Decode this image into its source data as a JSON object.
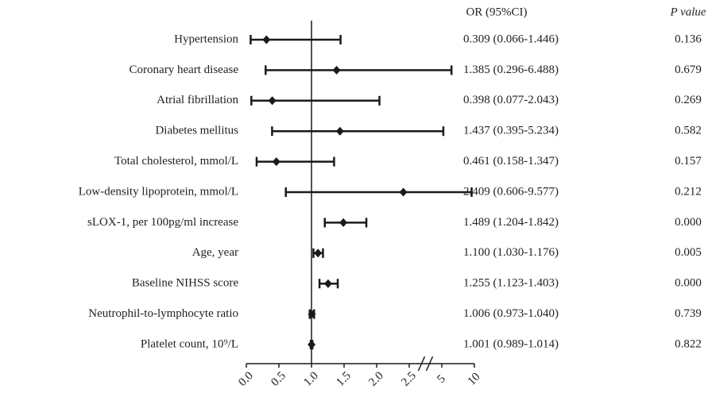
{
  "chart_data": {
    "type": "forest",
    "columns": [
      "OR (95%CI)",
      "P value"
    ],
    "categories": [
      "Hypertension",
      "Coronary heart disease",
      "Atrial fibrillation",
      "Diabetes mellitus",
      "Total cholesterol, mmol/L",
      "Low-density lipoprotein, mmol/L",
      "sLOX-1, per 100pg/ml increase",
      "Age, year",
      "Baseline NIHSS score",
      "Neutrophil-to-lymphocyte ratio",
      "Platelet count, 10⁹/L"
    ],
    "values": [
      0.309,
      1.385,
      0.398,
      1.437,
      0.461,
      2.409,
      1.489,
      1.1,
      1.255,
      1.006,
      1.001
    ],
    "lower": [
      0.066,
      0.296,
      0.077,
      0.395,
      0.158,
      0.606,
      1.204,
      1.03,
      1.123,
      0.973,
      0.989
    ],
    "upper": [
      1.446,
      6.488,
      2.043,
      5.234,
      1.347,
      9.577,
      1.842,
      1.176,
      1.403,
      1.04,
      1.014
    ],
    "value_labels": [
      "0.309 (0.066-1.446)",
      "1.385 (0.296-6.488)",
      "0.398 (0.077-2.043)",
      "1.437 (0.395-5.234)",
      "0.461 (0.158-1.347)",
      "2.409 (0.606-9.577)",
      "1.489 (1.204-1.842)",
      "1.100 (1.030-1.176)",
      "1.255 (1.123-1.403)",
      "1.006 (0.973-1.040)",
      "1.001 (0.989-1.014)"
    ],
    "p_values": [
      "0.136",
      "0.679",
      "0.269",
      "0.582",
      "0.157",
      "0.212",
      "0.000",
      "0.005",
      "0.000",
      "0.739",
      "0.822"
    ],
    "reference_line": 1,
    "color": "#1a1a1a",
    "xlim": [
      0,
      10
    ],
    "xticks": [
      {
        "value": 0,
        "label": "0.0"
      },
      {
        "value": 0.5,
        "label": "0.5"
      },
      {
        "value": 1,
        "label": "1.0"
      },
      {
        "value": 1.5,
        "label": "1.5"
      },
      {
        "value": 2,
        "label": "2.0"
      },
      {
        "value": 2.5,
        "label": "2.5"
      },
      5,
      10
    ]
  }
}
